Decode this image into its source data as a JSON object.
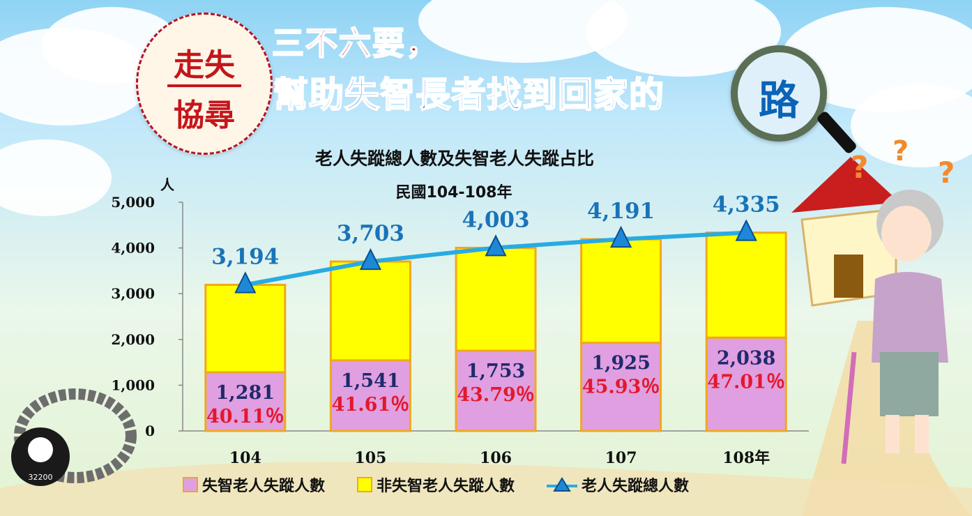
{
  "headline": {
    "badge_top": "走失",
    "badge_bottom": "協尋",
    "line1": "三不六要，",
    "line2": "幫助失智長者找到回家的",
    "magnifier_char": "路"
  },
  "colors": {
    "dementia": "#e09fe0",
    "non_dementia": "#ffff00",
    "bar_border": "#f0a81c",
    "line": "#29abe2",
    "marker": "#1e88d8",
    "total_label": "#1a73b8",
    "count_label": "#1f2a6b",
    "percent_label": "#e3182d"
  },
  "chart_data": {
    "type": "bar",
    "stacked": true,
    "title": "老人失蹤總人數及失智老人失蹤占比",
    "subtitle": "民國104-108年",
    "ylabel": "人",
    "ylim": [
      0,
      5000
    ],
    "yticks": [
      "0",
      "1,000",
      "2,000",
      "3,000",
      "4,000",
      "5,000"
    ],
    "categories": [
      "104",
      "105",
      "106",
      "107",
      "108年"
    ],
    "series": [
      {
        "name": "失智老人失蹤人數",
        "values": [
          1281,
          1541,
          1753,
          1925,
          2038
        ],
        "labels": [
          "1,281",
          "1,541",
          "1,753",
          "1,925",
          "2,038"
        ],
        "percent_labels": [
          "40.11％",
          "41.61％",
          "43.79％",
          "45.93％",
          "47.01％"
        ]
      },
      {
        "name": "非失智老人失蹤人數",
        "values": [
          1913,
          2162,
          2250,
          2266,
          2297
        ]
      },
      {
        "name": "老人失蹤總人數",
        "type": "line",
        "values": [
          3194,
          3703,
          4003,
          4191,
          4335
        ],
        "labels": [
          "3,194",
          "3,703",
          "4,003",
          "4,191",
          "4,335"
        ]
      }
    ],
    "legend": "bottom"
  },
  "bracelet_text": "32200"
}
